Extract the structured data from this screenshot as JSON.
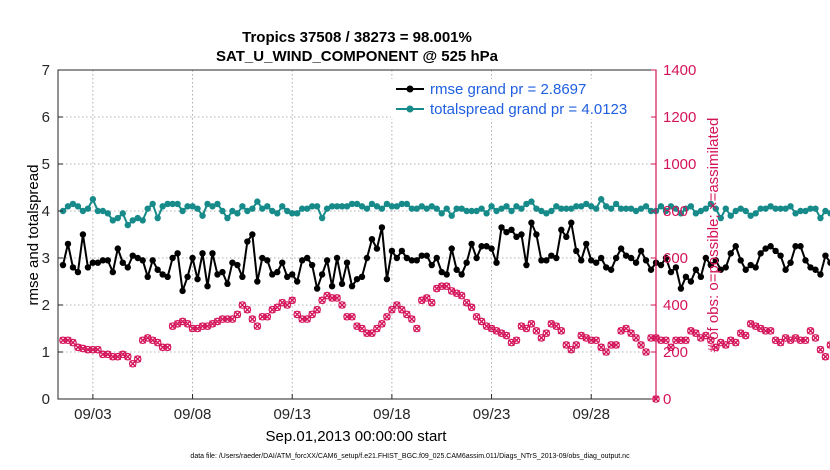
{
  "chart_data": {
    "type": "line",
    "title": "Tropics 37508 / 38273 = 98.001%",
    "subtitle": "SAT_U_WIND_COMPONENT @ 525 hPa",
    "xlabel": "Sep.01,2013 00:00:00 start",
    "ylabel_left": "rmse and totalspread",
    "ylabel_right": "# of obs: o=possible; ×=assimilated",
    "footnote": "data file: /Users/raeder/DAI/ATM_forcXX/CAM6_setup/f.e21.FHIST_BGC.f09_025.CAM6assim.011/Diags_NTrS_2013-09/obs_diag_output.nc",
    "x_tick_labels": [
      "09/03",
      "09/08",
      "09/13",
      "09/18",
      "09/23",
      "09/28"
    ],
    "x_tick_days": [
      3,
      8,
      13,
      18,
      23,
      28
    ],
    "xlim_days": [
      1.25,
      31.25
    ],
    "time_step_days": 0.25,
    "ylim_left": [
      0,
      7
    ],
    "yticks_left": [
      0,
      1,
      2,
      3,
      4,
      5,
      6,
      7
    ],
    "ylim_right": [
      0,
      1400
    ],
    "yticks_right": [
      0,
      200,
      400,
      600,
      800,
      1000,
      1200,
      1400
    ],
    "colors": {
      "rmse": "#000000",
      "spread": "#178a8a",
      "obs": "#d4145a",
      "legend_text": "#1f5fe0",
      "right_axis": "#d4145a"
    },
    "series": [
      {
        "name": "rmse grand pr = 2.8697",
        "axis": "left",
        "values": [
          2.85,
          3.3,
          2.8,
          2.7,
          3.5,
          2.8,
          2.9,
          2.9,
          2.95,
          2.95,
          2.7,
          3.2,
          2.9,
          2.8,
          3.05,
          3.0,
          2.95,
          2.6,
          2.95,
          2.75,
          2.65,
          2.6,
          3.0,
          3.1,
          2.3,
          2.6,
          3.0,
          2.55,
          3.1,
          2.4,
          3.1,
          2.65,
          2.7,
          2.45,
          2.9,
          2.85,
          2.6,
          3.35,
          3.5,
          2.5,
          3.0,
          2.95,
          2.65,
          2.7,
          2.9,
          2.6,
          2.65,
          2.5,
          2.95,
          3.0,
          2.85,
          2.35,
          2.65,
          2.95,
          2.4,
          3.0,
          2.45,
          2.9,
          2.4,
          2.55,
          2.6,
          3.0,
          3.4,
          3.2,
          3.65,
          2.55,
          3.15,
          3.0,
          3.15,
          3.0,
          2.95,
          2.95,
          3.05,
          3.05,
          2.85,
          3.0,
          2.7,
          2.65,
          3.2,
          2.75,
          2.65,
          2.9,
          3.3,
          3.0,
          3.25,
          3.25,
          3.2,
          2.9,
          3.65,
          3.55,
          3.6,
          3.45,
          3.5,
          2.85,
          3.75,
          3.5,
          2.95,
          2.95,
          3.05,
          3.0,
          3.6,
          3.45,
          3.75,
          3.15,
          2.95,
          3.3,
          2.95,
          2.9,
          3.0,
          2.8,
          2.75,
          3.0,
          3.2,
          3.05,
          3.0,
          2.9,
          3.15,
          2.95,
          2.75,
          2.9,
          2.85,
          3.0,
          2.7,
          2.8,
          2.35,
          2.6,
          2.5,
          2.75,
          2.6,
          3.0,
          2.85,
          2.95,
          2.75,
          2.8,
          3.1,
          3.25,
          2.95,
          2.75,
          2.85,
          2.8,
          3.1,
          3.2,
          3.25,
          3.15,
          3.05,
          2.75,
          2.9,
          3.25,
          3.25,
          2.95,
          2.8,
          2.75,
          2.65,
          3.05,
          2.9,
          2.9,
          2.9,
          2.75,
          2.65,
          2.55,
          3.05,
          2.85,
          2.6,
          2.5,
          2.85,
          2.9,
          2.95,
          2.75,
          2.7,
          2.8,
          3.05,
          2.7,
          2.95,
          3.15,
          3.4,
          3.3,
          3.25,
          3.05,
          2.75,
          2.7,
          2.85,
          2.8,
          3.0
        ]
      },
      {
        "name": "totalspread grand pr = 4.0123",
        "axis": "left",
        "values": [
          4.0,
          4.1,
          4.15,
          4.1,
          4.0,
          4.05,
          4.25,
          4.0,
          4.0,
          3.95,
          3.8,
          3.85,
          3.95,
          3.7,
          3.8,
          3.85,
          3.8,
          4.05,
          4.15,
          3.85,
          4.1,
          4.15,
          4.15,
          4.15,
          4.0,
          4.1,
          4.1,
          4.05,
          3.9,
          4.15,
          4.1,
          4.15,
          4.0,
          3.85,
          4.0,
          3.95,
          4.1,
          4.0,
          4.05,
          4.2,
          4.05,
          4.1,
          4.0,
          3.95,
          4.1,
          4.0,
          3.95,
          3.95,
          4.05,
          4.05,
          4.1,
          4.1,
          3.85,
          4.05,
          4.1,
          4.1,
          4.1,
          4.1,
          4.15,
          4.15,
          4.1,
          4.05,
          4.15,
          4.1,
          4.05,
          4.15,
          4.1,
          4.1,
          4.15,
          4.15,
          4.05,
          4.05,
          4.1,
          4.05,
          4.1,
          4.05,
          3.95,
          4.05,
          3.9,
          4.05,
          4.05,
          4.0,
          4.0,
          4.0,
          4.05,
          3.95,
          4.1,
          4.0,
          4.05,
          4.1,
          4.0,
          4.1,
          4.05,
          4.15,
          4.2,
          4.05,
          4.0,
          3.95,
          4.0,
          4.1,
          4.05,
          4.05,
          4.05,
          4.1,
          4.1,
          4.15,
          4.1,
          4.05,
          4.25,
          4.1,
          4.05,
          4.15,
          4.05,
          4.05,
          4.05,
          4.0,
          4.05,
          4.1,
          4.0,
          4.0,
          4.1,
          4.0,
          4.1,
          4.05,
          3.95,
          4.05,
          4.1,
          3.95,
          4.0,
          4.05,
          4.15,
          4.05,
          3.85,
          4.05,
          3.9,
          4.0,
          4.05,
          4.0,
          3.9,
          3.95,
          4.05,
          4.05,
          4.1,
          4.05,
          4.05,
          4.05,
          4.1,
          3.95,
          4.0,
          4.0,
          4.05,
          4.05,
          3.85,
          4.0,
          3.95,
          4.1,
          4.05,
          4.0,
          4.0,
          4.0,
          4.05,
          4.0,
          4.1,
          4.0,
          4.05,
          3.95,
          3.95,
          4.05,
          4.1,
          3.8,
          3.9,
          3.95,
          4.1,
          4.05,
          4.05,
          4.2,
          4.15,
          4.2,
          4.15,
          4.25,
          4.25,
          4.2,
          4.15
        ]
      },
      {
        "name": "# of obs (possible / assimilated)",
        "axis": "right",
        "values": [
          250,
          250,
          240,
          220,
          215,
          210,
          210,
          210,
          190,
          190,
          180,
          180,
          190,
          180,
          150,
          170,
          250,
          260,
          250,
          240,
          220,
          220,
          310,
          320,
          330,
          320,
          300,
          300,
          310,
          310,
          320,
          330,
          340,
          340,
          340,
          360,
          400,
          380,
          340,
          310,
          350,
          350,
          380,
          390,
          410,
          400,
          420,
          360,
          340,
          340,
          360,
          380,
          420,
          440,
          430,
          430,
          400,
          350,
          350,
          310,
          300,
          280,
          280,
          300,
          320,
          350,
          380,
          400,
          380,
          360,
          340,
          300,
          420,
          430,
          410,
          470,
          480,
          480,
          460,
          450,
          440,
          410,
          390,
          350,
          330,
          310,
          300,
          290,
          280,
          270,
          240,
          250,
          310,
          300,
          320,
          290,
          260,
          280,
          320,
          310,
          290,
          230,
          210,
          230,
          270,
          260,
          250,
          250,
          220,
          200,
          230,
          230,
          290,
          300,
          280,
          260,
          230,
          200,
          260,
          260,
          250,
          250,
          220,
          250,
          250,
          250,
          290,
          280,
          260,
          270,
          250,
          220,
          240,
          230,
          250,
          240,
          280,
          270,
          320,
          310,
          300,
          290,
          290,
          250,
          240,
          260,
          250,
          260,
          250,
          250,
          290,
          260,
          210,
          180,
          230,
          260,
          250,
          260,
          270,
          300,
          320,
          340,
          360,
          350,
          350,
          320,
          300,
          470,
          480,
          450,
          380,
          340,
          360,
          380,
          360,
          340,
          320,
          320,
          310,
          300
        ]
      }
    ]
  },
  "legend": {
    "rmse_label": "rmse grand pr = 2.8697",
    "spread_label": "totalspread grand pr = 4.0123"
  },
  "labels": {
    "title": "Tropics 37508 / 38273 = 98.001%",
    "subtitle": "SAT_U_WIND_COMPONENT @ 525 hPa",
    "xlabel": "Sep.01,2013 00:00:00 start",
    "ylabel_left": "rmse and totalspread",
    "ylabel_right": "# of obs: o=possible; ×=assimilated",
    "footnote": "data file: /Users/raeder/DAI/ATM_forcXX/CAM6_setup/f.e21.FHIST_BGC.f09_025.CAM6assim.011/Diags_NTrS_2013-09/obs_diag_output.nc"
  }
}
